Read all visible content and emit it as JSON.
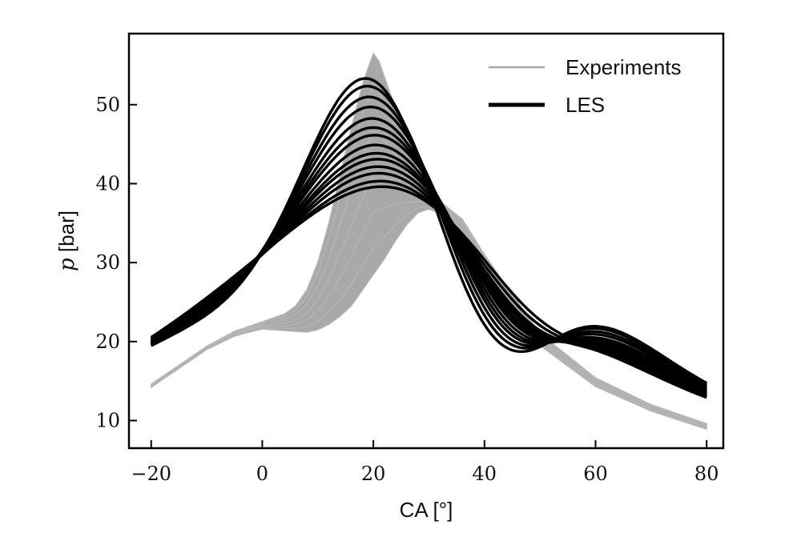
{
  "chart_data": {
    "type": "line",
    "title": "",
    "xlabel": "CA [°]",
    "ylabel_var": "p",
    "ylabel_unit": " [bar]",
    "xlim": [
      -24,
      83
    ],
    "ylim": [
      6.5,
      59
    ],
    "xticks": [
      -20,
      0,
      20,
      40,
      60,
      80
    ],
    "xtick_labels": [
      "−20",
      "0",
      "20",
      "40",
      "60",
      "80"
    ],
    "yticks": [
      10,
      20,
      30,
      40,
      50
    ],
    "ytick_labels": [
      "10",
      "20",
      "30",
      "40",
      "50"
    ],
    "grid": false,
    "legend_position": "top-right",
    "colors": {
      "experiments": "#a8a8a8",
      "les": "#000000"
    },
    "series": [
      {
        "name": "Experiments",
        "kind": "band",
        "x": [
          -20,
          -10,
          -5,
          0,
          4,
          6,
          8,
          10,
          12,
          14,
          16,
          18,
          19,
          20,
          21,
          22,
          24,
          26,
          28,
          30,
          32,
          34,
          36,
          40,
          50,
          60,
          70,
          80
        ],
        "upper": [
          14.6,
          19.4,
          21.3,
          22.5,
          23.5,
          24.5,
          26.5,
          30.0,
          35.0,
          41.0,
          47.0,
          52.5,
          54.5,
          56.5,
          55.5,
          53.5,
          49.5,
          45.0,
          41.5,
          39.0,
          37.8,
          36.6,
          35.5,
          31.0,
          21.0,
          15.4,
          12.0,
          9.6
        ],
        "lower": [
          14.2,
          19.0,
          20.7,
          21.6,
          21.4,
          21.3,
          21.2,
          21.5,
          22.2,
          23.2,
          24.5,
          26.5,
          27.5,
          28.5,
          29.5,
          30.5,
          32.8,
          34.8,
          36.3,
          36.8,
          36.2,
          35.0,
          33.0,
          29.0,
          19.5,
          14.3,
          11.2,
          8.9
        ]
      },
      {
        "name": "LES",
        "kind": "curves",
        "curves": [
          {
            "peak_x": 20,
            "peak_y": 53.2
          },
          {
            "peak_x": 20.5,
            "peak_y": 52.2
          },
          {
            "peak_x": 21,
            "peak_y": 50.8
          },
          {
            "peak_x": 21.5,
            "peak_y": 49.5
          },
          {
            "peak_x": 22,
            "peak_y": 48.0
          },
          {
            "peak_x": 22.5,
            "peak_y": 46.8
          },
          {
            "peak_x": 23,
            "peak_y": 45.8
          },
          {
            "peak_x": 23.5,
            "peak_y": 44.5
          },
          {
            "peak_x": 24,
            "peak_y": 43.4
          },
          {
            "peak_x": 24.5,
            "peak_y": 42.6
          },
          {
            "peak_x": 25,
            "peak_y": 41.6
          },
          {
            "peak_x": 25.5,
            "peak_y": 40.7
          },
          {
            "peak_x": 26.5,
            "peak_y": 39.6
          },
          {
            "peak_x": 27.5,
            "peak_y": 38.8
          }
        ]
      }
    ]
  }
}
